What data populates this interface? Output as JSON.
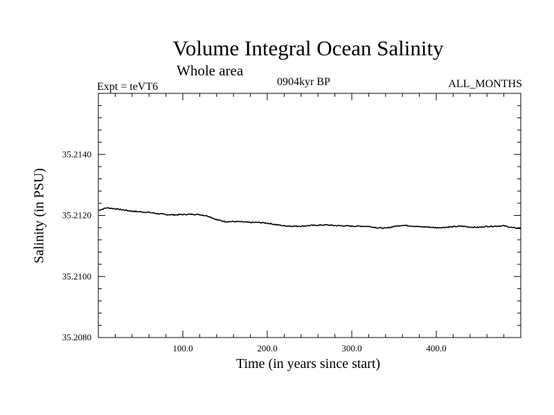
{
  "chart_data": {
    "type": "line",
    "title": "Volume Integral Ocean Salinity",
    "subtitle": "Whole area",
    "header_left": "Expt = teVT6",
    "header_center": "0904kyr BP",
    "header_right": "ALL_MONTHS",
    "xlabel": "Time (in years since start)",
    "ylabel": "Salinity (in PSU)",
    "xlim": [
      0,
      500
    ],
    "ylim": [
      35.208,
      35.216
    ],
    "xticks": [
      100,
      200,
      300,
      400
    ],
    "xtick_labels": [
      "100.0",
      "200.0",
      "300.0",
      "400.0"
    ],
    "yticks": [
      35.208,
      35.21,
      35.212,
      35.214
    ],
    "ytick_labels": [
      "35.2080",
      "35.2100",
      "35.2120",
      "35.2140"
    ],
    "grid": false,
    "series": [
      {
        "name": "Salinity",
        "color": "#000000",
        "x": [
          0,
          10,
          20,
          30,
          40,
          50,
          60,
          70,
          80,
          90,
          100,
          110,
          120,
          130,
          140,
          150,
          160,
          170,
          180,
          190,
          200,
          210,
          220,
          230,
          240,
          250,
          260,
          270,
          280,
          290,
          300,
          310,
          320,
          330,
          340,
          350,
          360,
          370,
          380,
          390,
          400,
          410,
          420,
          430,
          440,
          450,
          460,
          470,
          480,
          490,
          500
        ],
        "values": [
          35.21217,
          35.21225,
          35.21222,
          35.21218,
          35.21214,
          35.21212,
          35.2121,
          35.21206,
          35.21203,
          35.21202,
          35.21203,
          35.21204,
          35.21203,
          35.21198,
          35.21186,
          35.2118,
          35.2118,
          35.21179,
          35.21177,
          35.21177,
          35.21175,
          35.2117,
          35.21166,
          35.21165,
          35.21165,
          35.21167,
          35.21168,
          35.21169,
          35.21167,
          35.21166,
          35.21165,
          35.21165,
          35.21164,
          35.2116,
          35.21158,
          35.21164,
          35.21168,
          35.21166,
          35.21163,
          35.21162,
          35.2116,
          35.21161,
          35.21163,
          35.21165,
          35.21162,
          35.21161,
          35.21164,
          35.21165,
          35.21166,
          35.2116,
          35.21157
        ]
      }
    ]
  }
}
